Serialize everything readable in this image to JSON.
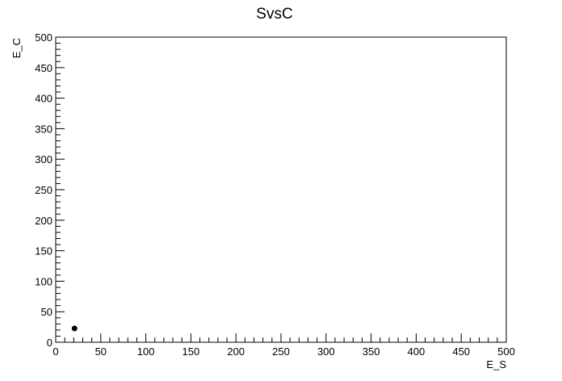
{
  "chart_data": {
    "type": "scatter",
    "title": "SvsC",
    "xlabel": "E_S",
    "ylabel": "E_C",
    "xlim": [
      0,
      500
    ],
    "ylim": [
      0,
      500
    ],
    "x_ticks": [
      "0",
      "50",
      "100",
      "150",
      "200",
      "250",
      "300",
      "350",
      "400",
      "450",
      "500"
    ],
    "y_ticks": [
      "0",
      "50",
      "100",
      "150",
      "200",
      "250",
      "300",
      "350",
      "400",
      "450",
      "500"
    ],
    "grid": false,
    "points": [
      {
        "x": 20,
        "y": 20
      }
    ],
    "marker_color": "#000000"
  }
}
